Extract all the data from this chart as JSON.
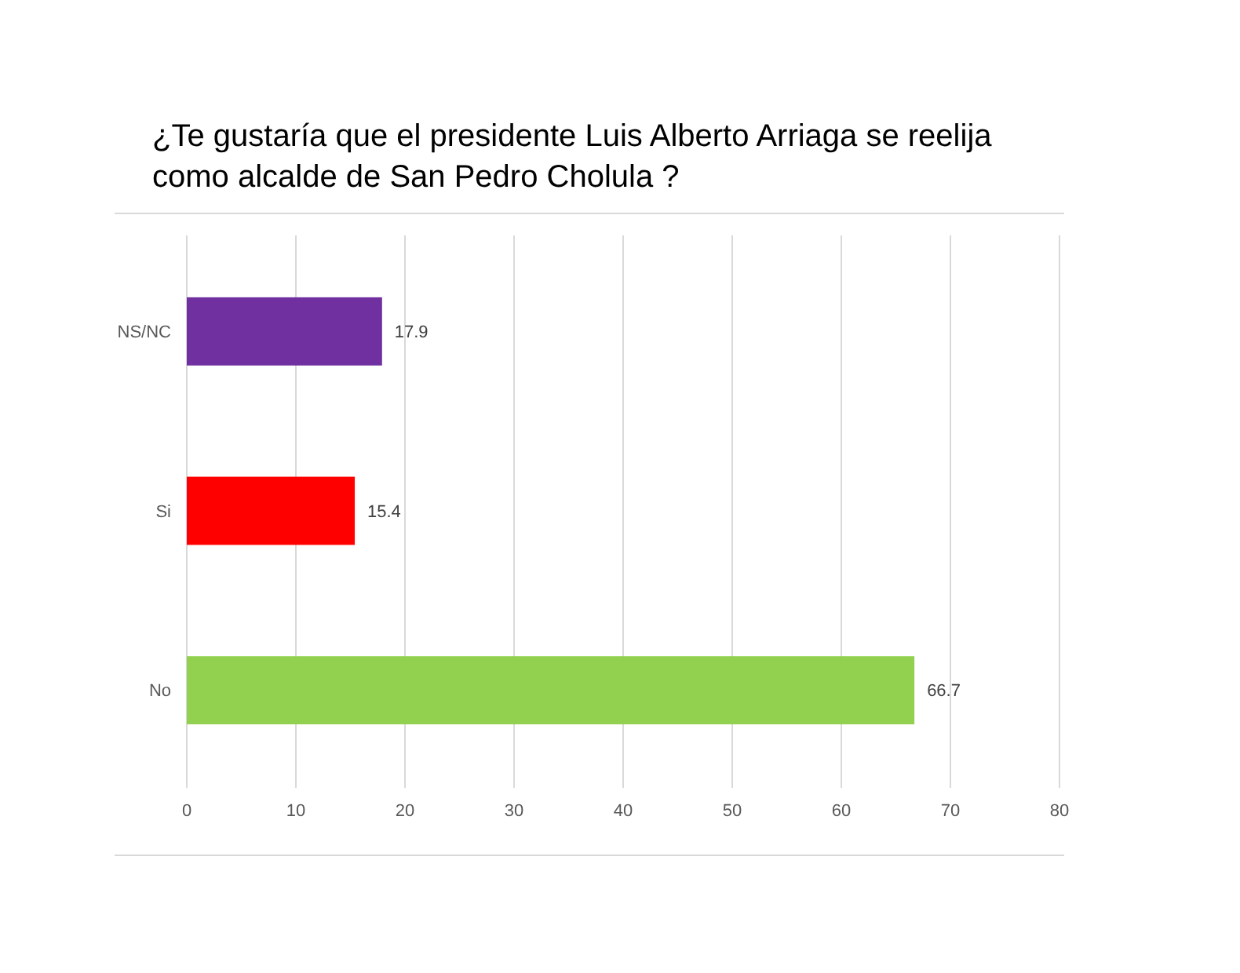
{
  "chart_data": {
    "type": "bar",
    "orientation": "horizontal",
    "title": "¿Te gustaría que el presidente Luis Alberto Arriaga se reelija como alcalde de San Pedro Cholula ?",
    "categories": [
      "NS/NC",
      "Si",
      "No"
    ],
    "values": [
      17.9,
      15.4,
      66.7
    ],
    "colors": [
      "#7030a0",
      "#ff0000",
      "#92d050"
    ],
    "xlim": [
      0,
      80
    ],
    "xticks": [
      0,
      10,
      20,
      30,
      40,
      50,
      60,
      70,
      80
    ],
    "grid": "x",
    "data_labels": true
  }
}
